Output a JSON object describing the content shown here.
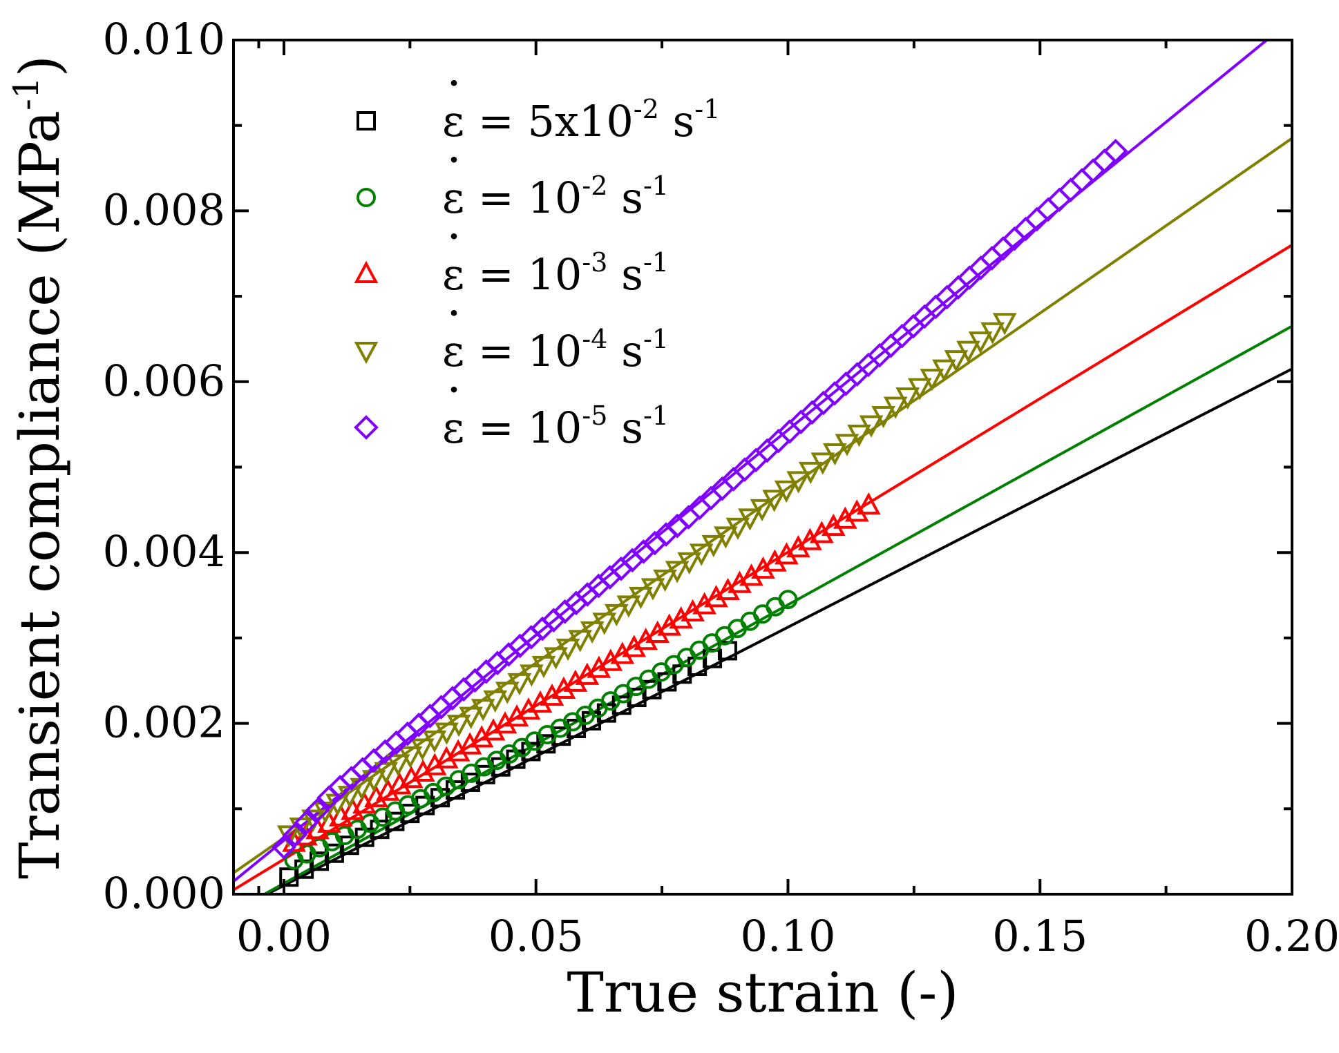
{
  "chart_data": {
    "type": "scatter",
    "title": "",
    "xlabel": "True strain (-)",
    "ylabel_main": "Transient compliance (MPa",
    "ylabel_sup": "-1",
    "ylabel_close": ")",
    "xlim": [
      -0.01,
      0.2
    ],
    "ylim": [
      0.0,
      0.01
    ],
    "x_ticks": [
      0.0,
      0.05,
      0.1,
      0.15,
      0.2
    ],
    "x_tick_labels": [
      "0.00",
      "0.05",
      "0.10",
      "0.15",
      "0.20"
    ],
    "x_minor_ticks": [
      -0.005,
      0.025,
      0.075,
      0.125,
      0.175
    ],
    "y_ticks": [
      0.0,
      0.002,
      0.004,
      0.006,
      0.008,
      0.01
    ],
    "y_tick_labels": [
      "0.000",
      "0.002",
      "0.004",
      "0.006",
      "0.008",
      "0.010"
    ],
    "y_minor_ticks": [
      0.001,
      0.003,
      0.005,
      0.007,
      0.009
    ],
    "legend_position": "top-left",
    "grid": false,
    "series": [
      {
        "name": "5x10-2 s-1",
        "label_base": "5x10",
        "label_exp": "-2",
        "label_unit": " s",
        "label_unit_exp": "-1",
        "color": "#000000",
        "marker": "square",
        "x_start": 0.001,
        "x_end": 0.088,
        "n_points": 30,
        "fit_line": {
          "x": [
            -0.01,
            0.2
          ],
          "y": [
            -0.0002,
            0.00615
          ]
        },
        "data_curve": {
          "x": [
            0.001,
            0.03,
            0.06,
            0.088
          ],
          "y": [
            0.0002,
            0.0011,
            0.002,
            0.00285
          ]
        }
      },
      {
        "name": "10-2 s-1",
        "label_base": "10",
        "label_exp": "-2",
        "label_unit": " s",
        "label_unit_exp": "-1",
        "color": "#008000",
        "marker": "circle",
        "x_start": 0.002,
        "x_end": 0.1,
        "n_points": 40,
        "fit_line": {
          "x": [
            -0.01,
            0.2
          ],
          "y": [
            -0.0002,
            0.00665
          ]
        },
        "data_curve": {
          "x": [
            0.002,
            0.03,
            0.06,
            0.1
          ],
          "y": [
            0.0004,
            0.0012,
            0.0021,
            0.00345
          ]
        }
      },
      {
        "name": "10-3 s-1",
        "label_base": "10",
        "label_exp": "-3",
        "label_unit": " s",
        "label_unit_exp": "-1",
        "color": "#ff0000",
        "marker": "triangle-up",
        "x_start": 0.002,
        "x_end": 0.116,
        "n_points": 50,
        "fit_line": {
          "x": [
            -0.01,
            0.2
          ],
          "y": [
            5e-05,
            0.0076
          ]
        },
        "data_curve": {
          "x": [
            0.002,
            0.03,
            0.07,
            0.116
          ],
          "y": [
            0.0006,
            0.0015,
            0.0029,
            0.00455
          ]
        }
      },
      {
        "name": "10-4 s-1",
        "label_base": "10",
        "label_exp": "-4",
        "label_unit": " s",
        "label_unit_exp": "-1",
        "color": "#808000",
        "marker": "triangle-down",
        "x_start": 0.001,
        "x_end": 0.143,
        "n_points": 60,
        "fit_line": {
          "x": [
            -0.01,
            0.2
          ],
          "y": [
            0.00025,
            0.00885
          ]
        },
        "data_curve": {
          "x": [
            0.001,
            0.04,
            0.09,
            0.143
          ],
          "y": [
            0.0007,
            0.0022,
            0.0043,
            0.0067
          ]
        }
      },
      {
        "name": "10-5 s-1",
        "label_base": "10",
        "label_exp": "-5",
        "label_unit": " s",
        "label_unit_exp": "-1",
        "color": "#8000ff",
        "marker": "diamond",
        "x_start": 0.0,
        "x_end": 0.165,
        "n_points": 75,
        "fit_line": {
          "x": [
            -0.01,
            0.195
          ],
          "y": [
            0.00015,
            0.01
          ]
        },
        "data_curve": {
          "x": [
            0.0,
            0.01,
            0.04,
            0.08,
            0.12,
            0.165
          ],
          "y": [
            0.00055,
            0.0012,
            0.0026,
            0.0044,
            0.0064,
            0.0087
          ]
        }
      }
    ]
  }
}
